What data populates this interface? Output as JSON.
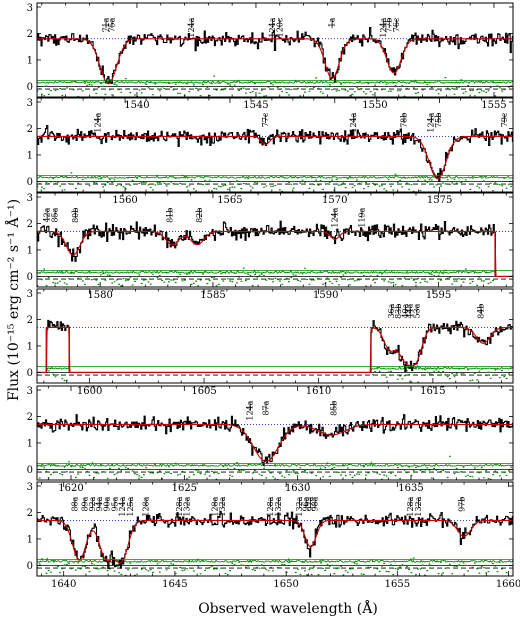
{
  "chart_data": {
    "type": "line",
    "xlabel": "Observed wavelength (Å)",
    "ylabel": "Flux (10⁻¹⁵ erg cm⁻² s⁻¹ Å⁻¹)",
    "ytick_labels": [
      "0",
      "1",
      "2",
      "3"
    ],
    "ylim": [
      -0.4,
      3
    ],
    "colors": {
      "flux": "#000000",
      "model": "#cc0000",
      "continuum": "#0000cc",
      "error": "#008800",
      "residual": "#008800",
      "zero": "#000000"
    },
    "panels": [
      {
        "xlim": [
          1535.8,
          1555.8
        ],
        "xticks": [
          1540,
          1545,
          1550,
          1555
        ],
        "xtick_labels": [
          "1540",
          "1545",
          "1550",
          "1555"
        ],
        "continuum": 1.8,
        "gaps": [],
        "absorption": [
          {
            "center": 1538.8,
            "depth": 1.7,
            "width": 0.35
          },
          {
            "center": 1548.2,
            "depth": 1.5,
            "width": 0.3
          },
          {
            "center": 1550.8,
            "depth": 1.3,
            "width": 0.3
          }
        ],
        "markers": [
          {
            "x": 1538.7,
            "label": "71a"
          },
          {
            "x": 1538.95,
            "label": "75a"
          },
          {
            "x": 1542.3,
            "label": "124a"
          },
          {
            "x": 1545.7,
            "label": "124a"
          },
          {
            "x": 1546.0,
            "label": "120c"
          },
          {
            "x": 1548.2,
            "label": "1a"
          },
          {
            "x": 1550.35,
            "label": "124a"
          },
          {
            "x": 1550.6,
            "label": "77b"
          },
          {
            "x": 1550.9,
            "label": "76c"
          }
        ]
      },
      {
        "xlim": [
          1555.8,
          1578.5
        ],
        "xticks": [
          1560,
          1565,
          1570,
          1575
        ],
        "xtick_labels": [
          "1560",
          "1565",
          "1570",
          "1575"
        ],
        "continuum": 1.7,
        "gaps": [],
        "absorption": [
          {
            "center": 1574.9,
            "depth": 1.6,
            "width": 0.4
          },
          {
            "center": 1566.7,
            "depth": 0.3,
            "width": 0.2
          }
        ],
        "markers": [
          {
            "x": 1558.7,
            "label": "124a"
          },
          {
            "x": 1566.7,
            "label": "77c"
          },
          {
            "x": 1570.9,
            "label": "124a"
          },
          {
            "x": 1573.3,
            "label": "78b"
          },
          {
            "x": 1574.6,
            "label": "124a"
          },
          {
            "x": 1574.95,
            "label": "75b"
          },
          {
            "x": 1578.1,
            "label": "79c"
          }
        ]
      },
      {
        "xlim": [
          1577.2,
          1598.3
        ],
        "xticks": [
          1580,
          1585,
          1590,
          1595
        ],
        "xtick_labels": [
          "1580",
          "1585",
          "1590",
          "1595"
        ],
        "continuum": 1.7,
        "gaps": [
          {
            "from": 1597.5,
            "to": 1598.3
          }
        ],
        "absorption": [
          {
            "center": 1578.8,
            "depth": 0.9,
            "width": 0.3
          },
          {
            "center": 1583.2,
            "depth": 0.5,
            "width": 0.3
          },
          {
            "center": 1584.3,
            "depth": 0.5,
            "width": 0.3
          },
          {
            "center": 1590.4,
            "depth": 0.3,
            "width": 0.2
          }
        ],
        "markers": [
          {
            "x": 1577.65,
            "label": "42a"
          },
          {
            "x": 1578.0,
            "label": "85a"
          },
          {
            "x": 1578.9,
            "label": "80b"
          },
          {
            "x": 1583.1,
            "label": "81b"
          },
          {
            "x": 1584.4,
            "label": "82b"
          },
          {
            "x": 1590.4,
            "label": "124a"
          },
          {
            "x": 1591.6,
            "label": "119a"
          }
        ]
      },
      {
        "xlim": [
          1597.7,
          1618.5
        ],
        "xticks": [
          1600,
          1605,
          1610,
          1615
        ],
        "xtick_labels": [
          "1600",
          "1605",
          "1610",
          "1615"
        ],
        "continuum": 1.7,
        "gaps": [
          {
            "from": 1597.7,
            "to": 1598.1
          },
          {
            "from": 1599.1,
            "to": 1612.3
          }
        ],
        "absorption": [
          {
            "center": 1613.1,
            "depth": 0.8,
            "width": 0.25
          },
          {
            "center": 1613.8,
            "depth": 1.2,
            "width": 0.3
          },
          {
            "center": 1614.3,
            "depth": 1.0,
            "width": 0.25
          },
          {
            "center": 1617.2,
            "depth": 0.6,
            "width": 0.3
          }
        ],
        "markers": [
          {
            "x": 1613.2,
            "label": "36a"
          },
          {
            "x": 1613.5,
            "label": "83b"
          },
          {
            "x": 1613.8,
            "label": "40a"
          },
          {
            "x": 1614.0,
            "label": "44a"
          },
          {
            "x": 1614.3,
            "label": "53a"
          },
          {
            "x": 1617.1,
            "label": "84b"
          }
        ]
      },
      {
        "xlim": [
          1618.5,
          1639.5
        ],
        "xticks": [
          1620,
          1625,
          1630,
          1635
        ],
        "xtick_labels": [
          "1620",
          "1625",
          "1630",
          "1635"
        ],
        "continuum": 1.7,
        "gaps": [],
        "absorption": [
          {
            "center": 1628.6,
            "depth": 1.4,
            "width": 0.55
          },
          {
            "center": 1631.5,
            "depth": 0.4,
            "width": 0.6
          }
        ],
        "markers": [
          {
            "x": 1627.9,
            "label": "124a"
          },
          {
            "x": 1628.6,
            "label": "87a"
          },
          {
            "x": 1631.6,
            "label": "85b"
          }
        ]
      },
      {
        "xlim": [
          1638.8,
          1660.2
        ],
        "xticks": [
          1640,
          1645,
          1650,
          1655,
          1660
        ],
        "xtick_labels": [
          "1640",
          "1645",
          "1650",
          "1655",
          "1660"
        ],
        "continuum": 1.7,
        "gaps": [],
        "absorption": [
          {
            "center": 1640.7,
            "depth": 1.5,
            "width": 0.3
          },
          {
            "center": 1641.9,
            "depth": 1.4,
            "width": 0.3
          },
          {
            "center": 1642.6,
            "depth": 1.5,
            "width": 0.3
          },
          {
            "center": 1651.1,
            "depth": 1.0,
            "width": 0.25
          },
          {
            "center": 1658.0,
            "depth": 0.6,
            "width": 0.3
          }
        ],
        "markers": [
          {
            "x": 1640.5,
            "label": "88a"
          },
          {
            "x": 1640.95,
            "label": "89a"
          },
          {
            "x": 1641.3,
            "label": "92a"
          },
          {
            "x": 1641.6,
            "label": "94a"
          },
          {
            "x": 1641.95,
            "label": "90a"
          },
          {
            "x": 1642.3,
            "label": "95a"
          },
          {
            "x": 1642.65,
            "label": "124a"
          },
          {
            "x": 1643.0,
            "label": "125a"
          },
          {
            "x": 1643.7,
            "label": "128a"
          },
          {
            "x": 1645.2,
            "label": "128a"
          },
          {
            "x": 1645.55,
            "label": "132a"
          },
          {
            "x": 1646.8,
            "label": "128a"
          },
          {
            "x": 1647.15,
            "label": "132a"
          },
          {
            "x": 1649.3,
            "label": "128a"
          },
          {
            "x": 1649.65,
            "label": "132a"
          },
          {
            "x": 1650.6,
            "label": "132a"
          },
          {
            "x": 1650.9,
            "label": "96a"
          },
          {
            "x": 1651.1,
            "label": "97a"
          },
          {
            "x": 1651.3,
            "label": "98a"
          },
          {
            "x": 1655.6,
            "label": "128a"
          },
          {
            "x": 1655.95,
            "label": "132a"
          },
          {
            "x": 1657.9,
            "label": "97b"
          }
        ]
      }
    ]
  }
}
